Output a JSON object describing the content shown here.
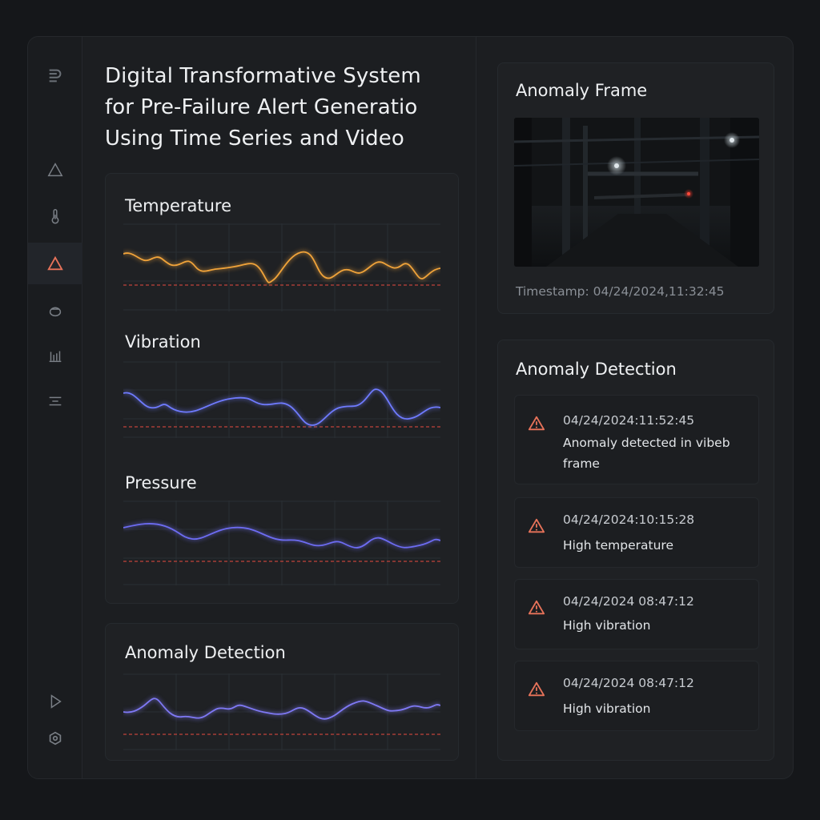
{
  "app": {
    "title": "Digital Transformative System for Pre-Failure Alert Generatio Using Time Series and Video"
  },
  "sidebar": {
    "items": [
      {
        "icon": "logo-icon"
      },
      {
        "icon": "warning-outline-icon"
      },
      {
        "icon": "thermometer-icon"
      },
      {
        "icon": "alert-triangle-icon",
        "active": true
      },
      {
        "icon": "drop-icon"
      },
      {
        "icon": "bar-chart-icon"
      },
      {
        "icon": "menu-lines-icon"
      },
      {
        "icon": "play-icon"
      },
      {
        "icon": "settings-icon"
      }
    ]
  },
  "charts": {
    "temperature": {
      "title": "Temperature",
      "color": "#f0a33a"
    },
    "vibration": {
      "title": "Vibration",
      "color": "#6f7bff"
    },
    "pressure": {
      "title": "Pressure",
      "color": "#6d6cf2"
    },
    "anomaly": {
      "title": "Anomaly Detection",
      "color": "#7f79f5"
    }
  },
  "anomaly_frame": {
    "title": "Anomaly Frame",
    "timestamp": "Timestamp: 04/24/2024,11:32:45"
  },
  "anomaly_detection": {
    "title": "Anomaly Detection",
    "alerts": [
      {
        "time": "04/24/2024:11:52:45",
        "message": "Anomaly detected in vibeb frame"
      },
      {
        "time": "04/24/2024:10:15:28",
        "message": "High temperature"
      },
      {
        "time": "04/24/2024 08:47:12",
        "message": "High vibration"
      },
      {
        "time": "04/24/2024 08:47:12",
        "message": "High vibration"
      }
    ]
  },
  "colors": {
    "threshold": "#c0443a",
    "alert": "#e8735a",
    "accent": "#e8735a"
  }
}
